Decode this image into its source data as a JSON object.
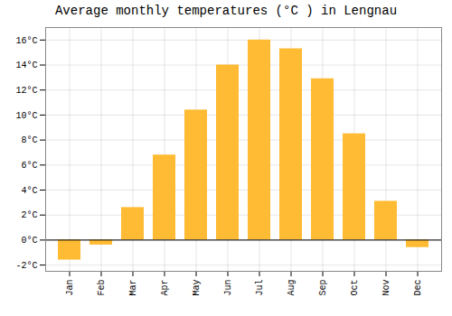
{
  "chart_data": {
    "type": "bar",
    "title": "Average monthly temperatures (°C ) in Lengnau",
    "categories": [
      "Jan",
      "Feb",
      "Mar",
      "Apr",
      "May",
      "Jun",
      "Jul",
      "Aug",
      "Sep",
      "Oct",
      "Nov",
      "Dec"
    ],
    "values": [
      -1.6,
      -0.4,
      2.6,
      6.8,
      10.4,
      14.0,
      16.0,
      15.3,
      12.9,
      8.5,
      3.1,
      -0.6
    ],
    "color": "#FFBB33",
    "ylim": [
      -2.5,
      17.0
    ],
    "yticks": [
      {
        "value": -2,
        "label": "-2°C"
      },
      {
        "value": 0,
        "label": "0°C"
      },
      {
        "value": 2,
        "label": "2°C"
      },
      {
        "value": 4,
        "label": "4°C"
      },
      {
        "value": 6,
        "label": "6°C"
      },
      {
        "value": 8,
        "label": "8°C"
      },
      {
        "value": 10,
        "label": "10°C"
      },
      {
        "value": 12,
        "label": "12°C"
      },
      {
        "value": 14,
        "label": "14°C"
      },
      {
        "value": 16,
        "label": "16°C"
      }
    ],
    "grid": true
  }
}
